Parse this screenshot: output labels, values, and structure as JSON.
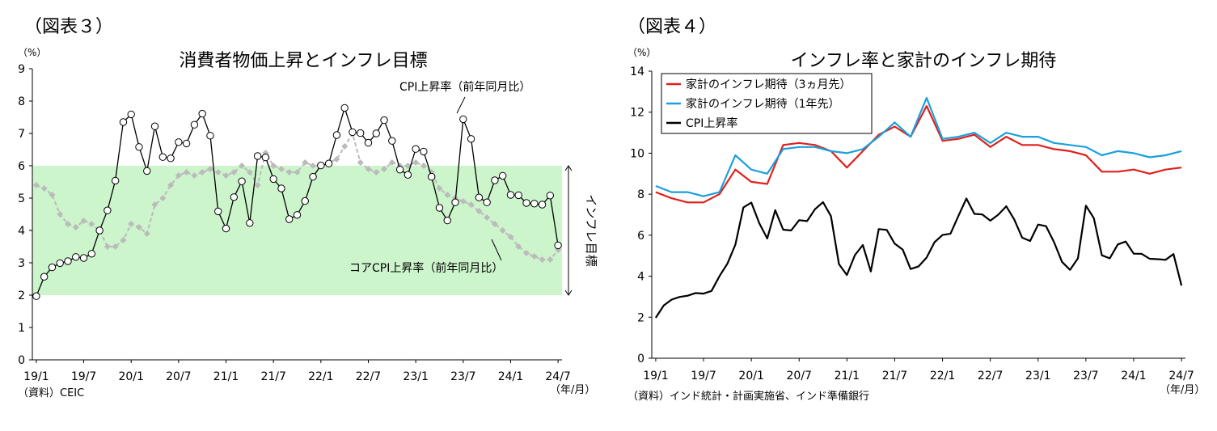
{
  "figures": [
    {
      "label": "（図表３）",
      "source": "（資料）CEIC",
      "unit_label": "（%）",
      "xunit_label": "（年/月）",
      "band_label": "インフレ目標",
      "annotation_cpi": "CPI上昇率（前年同月比）",
      "annotation_core": "コアCPI上昇率（前年同月比）"
    },
    {
      "label": "（図表４）",
      "source": "（資料）インド統計・計画実施省、インド準備銀行",
      "unit_label": "（%）",
      "xunit_label": "（年/月）"
    }
  ],
  "chart_data": [
    {
      "type": "line",
      "title": "消費者物価上昇とインフレ目標",
      "xlabel": "",
      "ylabel": "",
      "ylim": [
        0,
        9
      ],
      "yticks": [
        "0",
        "1",
        "2",
        "3",
        "4",
        "5",
        "6",
        "7",
        "8",
        "9"
      ],
      "xticks": [
        "19/1",
        "19/7",
        "20/1",
        "20/7",
        "21/1",
        "21/7",
        "22/1",
        "22/7",
        "23/1",
        "23/7",
        "24/1",
        "24/7"
      ],
      "x_start": "2019-01",
      "target_band": [
        2,
        6
      ],
      "grid": false,
      "colors": {
        "band": "#ccf5cc",
        "cpi": "#000000",
        "core": "#bbbbbb"
      },
      "series": [
        {
          "name": "CPI上昇率（前年同月比）",
          "values": [
            1.97,
            2.57,
            2.86,
            2.99,
            3.05,
            3.18,
            3.15,
            3.28,
            4.0,
            4.62,
            5.54,
            7.35,
            7.59,
            6.58,
            5.84,
            7.22,
            6.27,
            6.23,
            6.73,
            6.69,
            7.27,
            7.61,
            6.93,
            4.59,
            4.06,
            5.03,
            5.52,
            4.23,
            6.3,
            6.26,
            5.59,
            5.3,
            4.35,
            4.48,
            4.91,
            5.66,
            6.01,
            6.07,
            6.95,
            7.79,
            7.04,
            7.01,
            6.71,
            7.0,
            7.41,
            6.77,
            5.88,
            5.72,
            6.52,
            6.44,
            5.66,
            4.7,
            4.31,
            4.87,
            7.44,
            6.83,
            5.02,
            4.87,
            5.55,
            5.69,
            5.1,
            5.09,
            4.85,
            4.83,
            4.8,
            5.08,
            3.54
          ]
        },
        {
          "name": "コアCPI上昇率（前年同月比）",
          "values": [
            5.4,
            5.3,
            5.1,
            4.5,
            4.2,
            4.1,
            4.3,
            4.2,
            4.0,
            3.5,
            3.5,
            3.7,
            4.2,
            4.1,
            3.9,
            4.8,
            5.0,
            5.4,
            5.7,
            5.8,
            5.7,
            5.8,
            5.9,
            5.8,
            5.7,
            5.8,
            6.0,
            5.8,
            5.4,
            6.4,
            6.0,
            5.9,
            5.8,
            5.8,
            6.1,
            6.0,
            6.0,
            6.1,
            6.2,
            6.6,
            7.0,
            6.1,
            5.9,
            5.8,
            5.9,
            6.1,
            6.0,
            6.0,
            6.1,
            6.0,
            5.8,
            5.3,
            5.1,
            5.0,
            4.9,
            4.8,
            4.6,
            4.4,
            4.2,
            4.0,
            3.8,
            3.5,
            3.3,
            3.2,
            3.1,
            3.1,
            3.4
          ]
        }
      ]
    },
    {
      "type": "line",
      "title": "インフレ率と家計のインフレ期待",
      "xlabel": "",
      "ylabel": "",
      "ylim": [
        0,
        14
      ],
      "yticks": [
        "0",
        "2",
        "4",
        "6",
        "8",
        "10",
        "12",
        "14"
      ],
      "xticks": [
        "19/1",
        "19/7",
        "20/1",
        "20/7",
        "21/1",
        "21/7",
        "22/1",
        "22/7",
        "23/1",
        "23/7",
        "24/1",
        "24/7"
      ],
      "legend": "top-left",
      "grid": false,
      "series": [
        {
          "name": "家計のインフレ期待（3ヵ月先）",
          "color": "#e0201c",
          "x": [
            "19/1",
            "19/3",
            "19/5",
            "19/7",
            "19/9",
            "19/11",
            "20/1",
            "20/3",
            "20/5",
            "20/7",
            "20/9",
            "20/11",
            "21/1",
            "21/3",
            "21/5",
            "21/7",
            "21/9",
            "21/11",
            "22/1",
            "22/3",
            "22/5",
            "22/7",
            "22/9",
            "22/11",
            "23/1",
            "23/3",
            "23/5",
            "23/7",
            "23/9",
            "23/11",
            "24/1",
            "24/3",
            "24/5",
            "24/7"
          ],
          "values": [
            8.1,
            7.8,
            7.6,
            7.6,
            8.0,
            9.2,
            8.6,
            8.5,
            10.4,
            10.5,
            10.4,
            10.1,
            9.3,
            10.1,
            10.9,
            11.3,
            10.8,
            12.3,
            10.6,
            10.7,
            10.9,
            10.3,
            10.8,
            10.4,
            10.4,
            10.2,
            10.1,
            9.9,
            9.1,
            9.1,
            9.2,
            9.0,
            9.2,
            9.3
          ]
        },
        {
          "name": "家計のインフレ期待（1年先）",
          "color": "#1aa0dc",
          "x": [
            "19/1",
            "19/3",
            "19/5",
            "19/7",
            "19/9",
            "19/11",
            "20/1",
            "20/3",
            "20/5",
            "20/7",
            "20/9",
            "20/11",
            "21/1",
            "21/3",
            "21/5",
            "21/7",
            "21/9",
            "21/11",
            "22/1",
            "22/3",
            "22/5",
            "22/7",
            "22/9",
            "22/11",
            "23/1",
            "23/3",
            "23/5",
            "23/7",
            "23/9",
            "23/11",
            "24/1",
            "24/3",
            "24/5",
            "24/7"
          ],
          "values": [
            8.4,
            8.1,
            8.1,
            7.9,
            8.1,
            9.9,
            9.2,
            9.0,
            10.2,
            10.3,
            10.3,
            10.1,
            10.0,
            10.2,
            10.8,
            11.5,
            10.8,
            12.7,
            10.7,
            10.8,
            11.0,
            10.5,
            11.0,
            10.8,
            10.8,
            10.5,
            10.4,
            10.3,
            9.9,
            10.1,
            10.0,
            9.8,
            9.9,
            10.1
          ]
        },
        {
          "name": "CPI上昇率",
          "color": "#000000",
          "values": [
            1.97,
            2.57,
            2.86,
            2.99,
            3.05,
            3.18,
            3.15,
            3.28,
            4.0,
            4.62,
            5.54,
            7.35,
            7.59,
            6.58,
            5.84,
            7.22,
            6.27,
            6.23,
            6.73,
            6.69,
            7.27,
            7.61,
            6.93,
            4.59,
            4.06,
            5.03,
            5.52,
            4.23,
            6.3,
            6.26,
            5.59,
            5.3,
            4.35,
            4.48,
            4.91,
            5.66,
            6.01,
            6.07,
            6.95,
            7.79,
            7.04,
            7.01,
            6.71,
            7.0,
            7.41,
            6.77,
            5.88,
            5.72,
            6.52,
            6.44,
            5.66,
            4.7,
            4.31,
            4.87,
            7.44,
            6.83,
            5.02,
            4.87,
            5.55,
            5.69,
            5.1,
            5.09,
            4.85,
            4.83,
            4.8,
            5.08,
            3.54
          ]
        }
      ]
    }
  ]
}
